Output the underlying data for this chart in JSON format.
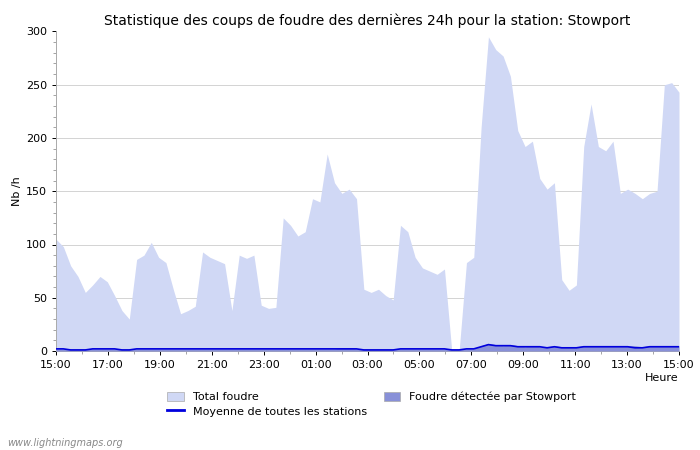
{
  "title": "Statistique des coups de foudre des dernières 24h pour la station: Stowport",
  "xlabel": "Heure",
  "ylabel": "Nb /h",
  "ylim": [
    0,
    300
  ],
  "watermark": "www.lightningmaps.org",
  "x_labels": [
    "15:00",
    "17:00",
    "19:00",
    "21:00",
    "23:00",
    "01:00",
    "03:00",
    "05:00",
    "07:00",
    "09:00",
    "11:00",
    "13:00",
    "15:00"
  ],
  "total_foudre_color": "#d0d8f5",
  "stowport_color": "#8890d8",
  "moyenne_color": "#0000dd",
  "total_foudre_values": [
    105,
    98,
    80,
    70,
    55,
    62,
    70,
    65,
    52,
    38,
    30,
    86,
    90,
    102,
    88,
    83,
    58,
    35,
    38,
    42,
    93,
    88,
    85,
    82,
    38,
    90,
    87,
    90,
    43,
    40,
    41,
    125,
    118,
    108,
    112,
    143,
    140,
    185,
    158,
    148,
    152,
    143,
    58,
    55,
    58,
    52,
    48,
    118,
    112,
    88,
    78,
    75,
    72,
    77,
    0,
    0,
    83,
    88,
    210,
    295,
    283,
    277,
    258,
    207,
    192,
    197,
    162,
    152,
    158,
    67,
    57,
    62,
    192,
    232,
    192,
    188,
    197,
    148,
    152,
    148,
    143,
    148,
    150,
    250,
    252,
    243
  ],
  "stowport_values": [
    2,
    2,
    2,
    2,
    2,
    2,
    2,
    2,
    2,
    2,
    2,
    2,
    2,
    2,
    2,
    2,
    2,
    2,
    2,
    2,
    2,
    2,
    2,
    2,
    2,
    2,
    2,
    2,
    2,
    2,
    2,
    2,
    2,
    2,
    2,
    2,
    2,
    2,
    2,
    3,
    3,
    2,
    2,
    2,
    2,
    2,
    2,
    2,
    2,
    2,
    2,
    2,
    2,
    2,
    2,
    2,
    2,
    2,
    5,
    7,
    6,
    5,
    6,
    5,
    4,
    5,
    4,
    4,
    5,
    4,
    4,
    4,
    5,
    5,
    5,
    5,
    5,
    5,
    5,
    5,
    4,
    5,
    5,
    5,
    5,
    5
  ],
  "moyenne_values": [
    2,
    2,
    1,
    1,
    1,
    2,
    2,
    2,
    2,
    1,
    1,
    2,
    2,
    2,
    2,
    2,
    2,
    2,
    2,
    2,
    2,
    2,
    2,
    2,
    2,
    2,
    2,
    2,
    2,
    2,
    2,
    2,
    2,
    2,
    2,
    2,
    2,
    2,
    2,
    2,
    2,
    2,
    1,
    1,
    1,
    1,
    1,
    2,
    2,
    2,
    2,
    2,
    2,
    2,
    1,
    1,
    2,
    2,
    4,
    6,
    5,
    5,
    5,
    4,
    4,
    4,
    4,
    3,
    4,
    3,
    3,
    3,
    4,
    4,
    4,
    4,
    4,
    4,
    4,
    3,
    3,
    4,
    4,
    4,
    4,
    4
  ],
  "title_fontsize": 10,
  "axis_label_fontsize": 8,
  "tick_fontsize": 8,
  "legend_fontsize": 8
}
